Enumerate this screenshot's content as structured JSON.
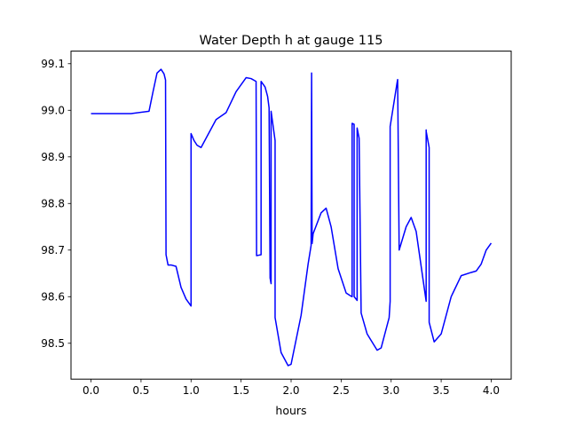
{
  "chart_data": {
    "type": "line",
    "title": "Water Depth h at gauge 115",
    "xlabel": "hours",
    "ylabel": "",
    "xlim": [
      -0.2,
      4.2
    ],
    "ylim": [
      98.423,
      99.127
    ],
    "xticks": [
      0.0,
      0.5,
      1.0,
      1.5,
      2.0,
      2.5,
      3.0,
      3.5,
      4.0
    ],
    "xtick_labels": [
      "0.0",
      "0.5",
      "1.0",
      "1.5",
      "2.0",
      "2.5",
      "3.0",
      "3.5",
      "4.0"
    ],
    "yticks": [
      98.5,
      98.6,
      98.7,
      98.8,
      98.9,
      99.0,
      99.1
    ],
    "ytick_labels": [
      "98.5",
      "98.6",
      "98.7",
      "98.8",
      "98.9",
      "99.0",
      "99.1"
    ],
    "grid": false,
    "series": [
      {
        "color": "#0000ff",
        "x": [
          0.0,
          0.2,
          0.4,
          0.58,
          0.62,
          0.66,
          0.7,
          0.73,
          0.745,
          0.75,
          0.77,
          0.8,
          0.85,
          0.9,
          0.95,
          1.0,
          1.0,
          1.03,
          1.06,
          1.1,
          1.15,
          1.25,
          1.35,
          1.45,
          1.55,
          1.6,
          1.65,
          1.655,
          1.7,
          1.7,
          1.74,
          1.765,
          1.78,
          1.79,
          1.8,
          1.8,
          1.84,
          1.84,
          1.9,
          1.97,
          2.0,
          2.1,
          2.17,
          2.2,
          2.205,
          2.21,
          2.215,
          2.22,
          2.3,
          2.35,
          2.4,
          2.47,
          2.55,
          2.6,
          2.61,
          2.61,
          2.63,
          2.63,
          2.66,
          2.66,
          2.68,
          2.7,
          2.7,
          2.76,
          2.86,
          2.9,
          2.98,
          2.99,
          2.99,
          3.06,
          3.065,
          3.08,
          3.15,
          3.2,
          3.25,
          3.35,
          3.35,
          3.35,
          3.38,
          3.38,
          3.43,
          3.5,
          3.6,
          3.7,
          3.8,
          3.85,
          3.9,
          3.95,
          4.0
        ],
        "y": [
          98.993,
          98.993,
          98.993,
          98.998,
          99.04,
          99.08,
          99.088,
          99.078,
          99.065,
          98.69,
          98.668,
          98.668,
          98.665,
          98.62,
          98.595,
          98.58,
          98.95,
          98.935,
          98.925,
          98.92,
          98.94,
          98.98,
          98.995,
          99.04,
          99.07,
          99.068,
          99.062,
          98.688,
          98.69,
          99.062,
          99.05,
          99.03,
          99.005,
          98.64,
          98.628,
          98.998,
          98.935,
          98.555,
          98.48,
          98.452,
          98.455,
          98.56,
          98.67,
          98.71,
          99.08,
          98.714,
          98.724,
          98.735,
          98.78,
          98.79,
          98.75,
          98.66,
          98.608,
          98.601,
          98.6,
          98.972,
          98.97,
          98.6,
          98.592,
          98.962,
          98.94,
          98.568,
          98.565,
          98.52,
          98.485,
          98.49,
          98.555,
          98.59,
          98.965,
          99.06,
          99.066,
          98.7,
          98.75,
          98.77,
          98.74,
          98.59,
          98.958,
          98.955,
          98.92,
          98.545,
          98.503,
          98.52,
          98.6,
          98.645,
          98.652,
          98.655,
          98.67,
          98.7,
          98.715
        ]
      }
    ]
  }
}
